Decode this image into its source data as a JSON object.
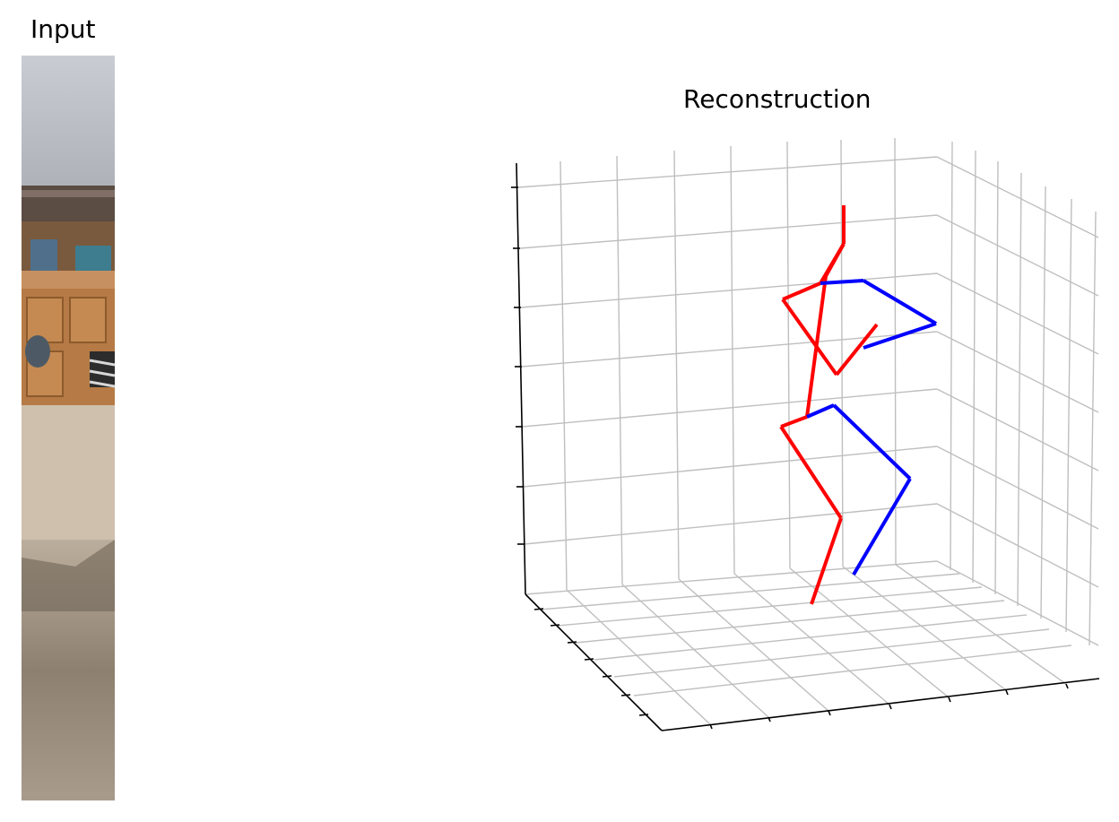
{
  "input_panel": {
    "title": "Input"
  },
  "reconstruction_panel": {
    "title": "Reconstruction"
  },
  "chart_data": {
    "type": "3d-skeleton",
    "title": "Reconstruction",
    "grid": true,
    "colors": {
      "right": "#ff0000",
      "left": "#0000ff",
      "grid": "#bfbfbf",
      "axis": "#000000"
    },
    "joints_projected": {
      "head_top": [
        941,
        229
      ],
      "neck": [
        941,
        272
      ],
      "spine": [
        921,
        308
      ],
      "pelvis": [
        900,
        465
      ],
      "r_shoulder": [
        915,
        316
      ],
      "r_elbow": [
        873,
        334
      ],
      "r_wrist": [
        933,
        418
      ],
      "r_hand": [
        978,
        362
      ],
      "l_shoulder": [
        963,
        313
      ],
      "l_elbow": [
        1044,
        361
      ],
      "l_wrist": [
        963,
        388
      ],
      "r_hip": [
        871,
        476
      ],
      "r_knee": [
        938,
        578
      ],
      "r_ankle": [
        905,
        674
      ],
      "l_hip": [
        930,
        452
      ],
      "l_knee": [
        1015,
        534
      ],
      "l_ankle": [
        952,
        641
      ]
    },
    "bones": [
      {
        "from": "head_top",
        "to": "neck",
        "side": "right"
      },
      {
        "from": "neck",
        "to": "r_shoulder",
        "side": "right"
      },
      {
        "from": "r_shoulder",
        "to": "r_elbow",
        "side": "right"
      },
      {
        "from": "r_elbow",
        "to": "r_wrist",
        "side": "right"
      },
      {
        "from": "r_wrist",
        "to": "r_hand",
        "side": "right"
      },
      {
        "from": "neck",
        "to": "spine",
        "side": "right"
      },
      {
        "from": "spine",
        "to": "pelvis",
        "side": "right"
      },
      {
        "from": "pelvis",
        "to": "r_hip",
        "side": "right"
      },
      {
        "from": "r_hip",
        "to": "r_knee",
        "side": "right"
      },
      {
        "from": "r_knee",
        "to": "r_ankle",
        "side": "right"
      },
      {
        "from": "r_shoulder",
        "to": "l_shoulder",
        "side": "left"
      },
      {
        "from": "l_shoulder",
        "to": "l_elbow",
        "side": "left"
      },
      {
        "from": "l_elbow",
        "to": "l_wrist",
        "side": "left"
      },
      {
        "from": "pelvis",
        "to": "l_hip",
        "side": "left"
      },
      {
        "from": "l_hip",
        "to": "l_knee",
        "side": "left"
      },
      {
        "from": "l_knee",
        "to": "l_ankle",
        "side": "left"
      }
    ]
  }
}
